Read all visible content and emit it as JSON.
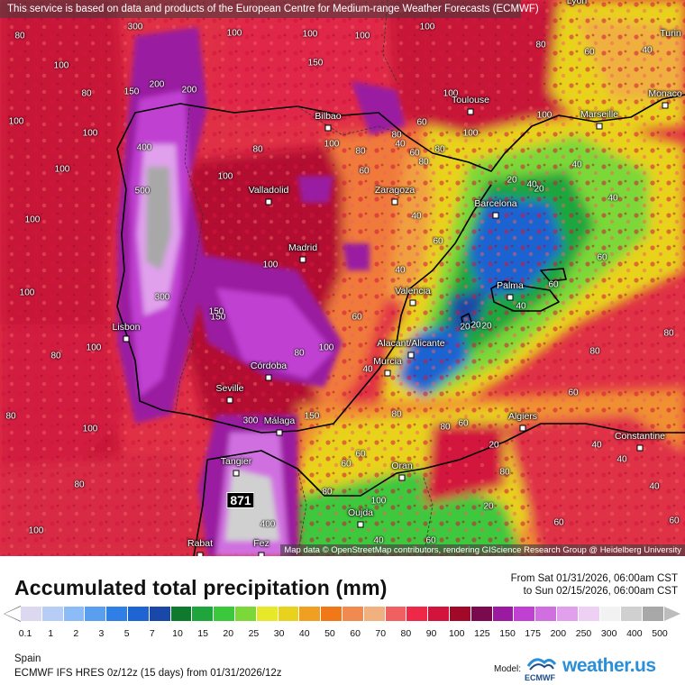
{
  "notice": "This service is based on data and products of the European Centre for Medium-range Weather Forecasts (ECMWF)",
  "attribution": "Map data © OpenStreetMap contributors, rendering GIScience Research Group @ Heidelberg University",
  "max_value": "871",
  "cities": [
    {
      "name": "Lyon",
      "dot": false
    },
    {
      "name": "Turin",
      "dot": false
    },
    {
      "name": "Monaco",
      "dot": true
    },
    {
      "name": "Marseille",
      "dot": true
    },
    {
      "name": "Toulouse",
      "dot": true
    },
    {
      "name": "Bilbao",
      "dot": true
    },
    {
      "name": "Valladolid",
      "dot": true
    },
    {
      "name": "Zaragoza",
      "dot": true
    },
    {
      "name": "Barcelona",
      "dot": true
    },
    {
      "name": "Madrid",
      "dot": true
    },
    {
      "name": "Palma",
      "dot": true
    },
    {
      "name": "Valencia",
      "dot": true
    },
    {
      "name": "Lisbon",
      "dot": true
    },
    {
      "name": "Alacant/Alicante",
      "dot": true
    },
    {
      "name": "Murcia",
      "dot": true
    },
    {
      "name": "Córdoba",
      "dot": true
    },
    {
      "name": "Seville",
      "dot": true
    },
    {
      "name": "Algiers",
      "dot": true
    },
    {
      "name": "Constantine",
      "dot": true
    },
    {
      "name": "Málaga",
      "dot": true
    },
    {
      "name": "Tangier",
      "dot": true
    },
    {
      "name": "Oran",
      "dot": true
    },
    {
      "name": "Oujda",
      "dot": true
    },
    {
      "name": "Rabat",
      "dot": true
    },
    {
      "name": "Fez",
      "dot": true
    }
  ],
  "map_values": [
    "80",
    "100",
    "100",
    "150",
    "200",
    "100",
    "80",
    "100",
    "100",
    "100",
    "150",
    "400",
    "500",
    "300",
    "100",
    "80",
    "100",
    "80",
    "80",
    "100",
    "100",
    "100",
    "150",
    "80",
    "300",
    "150",
    "100",
    "400",
    "60",
    "40",
    "20",
    "20",
    "40",
    "60",
    "80",
    "100",
    "40",
    "40",
    "60",
    "80",
    "60",
    "40",
    "20",
    "20",
    "40",
    "60",
    "80",
    "100",
    "100",
    "60",
    "40",
    "60",
    "80",
    "60",
    "40",
    "40",
    "60",
    "80",
    "60",
    "40",
    "20",
    "20",
    "40",
    "60",
    "80",
    "100",
    "100",
    "100",
    "80",
    "60",
    "80",
    "100",
    "80",
    "60",
    "40",
    "20",
    "60",
    "80",
    "100",
    "80",
    "40",
    "60",
    "80",
    "100",
    "150",
    "300",
    "200"
  ],
  "legend": {
    "title": "Accumulated total precipitation (mm)",
    "from": "From Sat 01/31/2026, 06:00am CST",
    "to": "to Sun 02/15/2026, 06:00am CST",
    "colors": [
      "#dcd8f0",
      "#b8cdf5",
      "#8cbcf7",
      "#5a9ef0",
      "#2f7fe6",
      "#1e64d2",
      "#1a48a8",
      "#0f7a2e",
      "#1ea63c",
      "#3cc83c",
      "#7cd838",
      "#e8e82a",
      "#e8d21e",
      "#f0a020",
      "#f07818",
      "#f08a50",
      "#f0b080",
      "#f06060",
      "#f02848",
      "#d2143c",
      "#a00a28",
      "#7a0a4e",
      "#9a1aa0",
      "#c040d2",
      "#d070e0",
      "#e0a0ec",
      "#eed0f4",
      "#f2f2f2",
      "#d0d0d0",
      "#a8a8a8"
    ],
    "ticks": [
      "0.1",
      "1",
      "2",
      "3",
      "5",
      "7",
      "10",
      "15",
      "20",
      "25",
      "30",
      "40",
      "50",
      "60",
      "70",
      "80",
      "90",
      "100",
      "125",
      "150",
      "175",
      "200",
      "250",
      "300",
      "400",
      "500"
    ]
  },
  "region": "Spain",
  "model_line": "ECMWF IFS HRES 0z/12z (15 days) from 01/31/2026/12z",
  "model_label": "Model:",
  "ecmwf_logo_text": "ECMWF",
  "brand": "weather.us"
}
